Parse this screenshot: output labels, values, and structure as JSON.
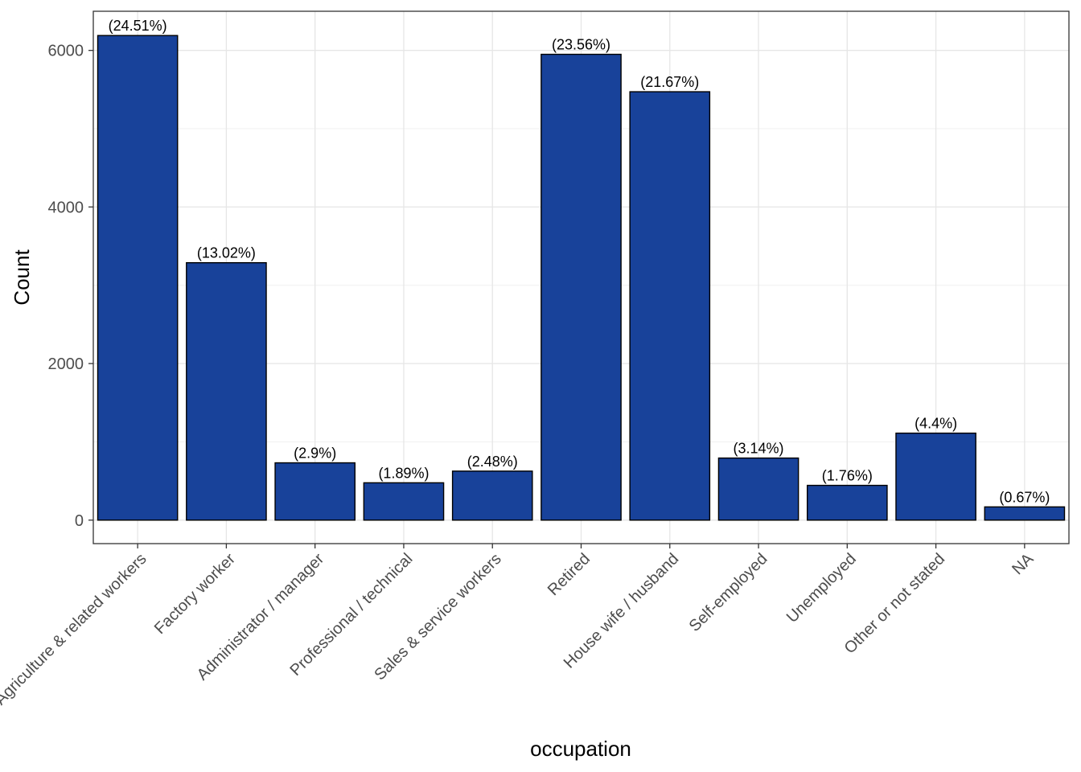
{
  "chart_data": {
    "type": "bar",
    "xlabel": "occupation",
    "ylabel": "Count",
    "categories": [
      "Agriculture & related workers",
      "Factory worker",
      "Administrator / manager",
      "Professional / technical",
      "Sales & service workers",
      "Retired",
      "House wife / husband",
      "Self-employed",
      "Unemployed",
      "Other or not stated",
      "NA"
    ],
    "values": [
      6190,
      3288,
      732,
      477,
      626,
      5950,
      5472,
      793,
      444,
      1111,
      169
    ],
    "data_labels": [
      "(24.51%)",
      "(13.02%)",
      "(2.9%)",
      "(1.89%)",
      "(2.48%)",
      "(23.56%)",
      "(21.67%)",
      "(3.14%)",
      "(1.76%)",
      "(4.4%)",
      "(0.67%)"
    ],
    "yticks": [
      0,
      2000,
      4000,
      6000
    ],
    "ylim": [
      -300,
      6500
    ],
    "grid": true,
    "bar_color": "#18429A",
    "bar_outline": "#000000"
  }
}
